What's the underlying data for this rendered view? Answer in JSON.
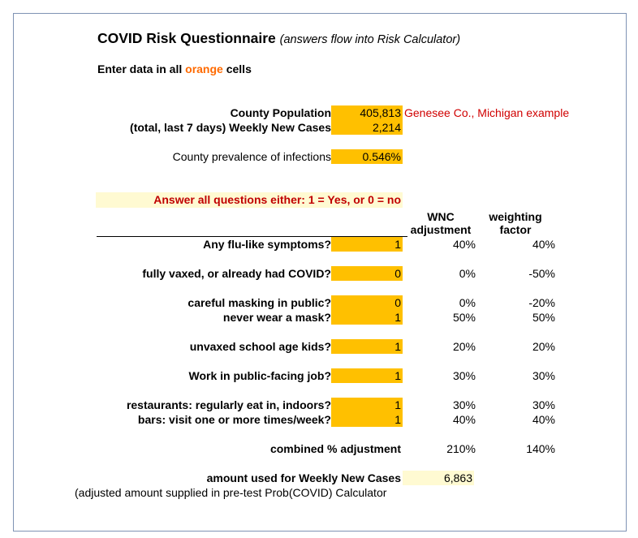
{
  "title": "COVID Risk Questionnaire",
  "subtitle": "(answers flow into Risk Calculator)",
  "instruction": {
    "prefix": "Enter data in all ",
    "highlight": "orange",
    "suffix": " cells"
  },
  "county": {
    "population_label": "County Population",
    "population_value": "405,813",
    "example_note": "Genesee Co., Michigan example",
    "cases_label": "(total, last 7 days) Weekly New Cases",
    "cases_value": "2,214",
    "prevalence_label": "County prevalence of infections",
    "prevalence_value": "0.546%"
  },
  "answer_banner": "Answer all questions either: 1 = Yes, or 0 = no",
  "headers": {
    "wnc": "WNC adjustment",
    "wnc_line1": "WNC",
    "wnc_line2": "adjustment",
    "weight_line1": "weighting",
    "weight_line2": "factor"
  },
  "questions": [
    {
      "label": "Any flu-like symptoms?",
      "answer": "1",
      "wnc": "40%",
      "weight": "40%"
    },
    {
      "label": "fully vaxed, or already had COVID?",
      "answer": "0",
      "wnc": "0%",
      "weight": "-50%"
    },
    {
      "label": "careful masking in public?",
      "answer": "0",
      "wnc": "0%",
      "weight": "-20%"
    },
    {
      "label": "never wear a mask?",
      "answer": "1",
      "wnc": "50%",
      "weight": "50%"
    },
    {
      "label": "unvaxed school age kids?",
      "answer": "1",
      "wnc": "20%",
      "weight": "20%"
    },
    {
      "label": "Work in public-facing job?",
      "answer": "1",
      "wnc": "30%",
      "weight": "30%"
    },
    {
      "label": "restaurants: regularly eat in, indoors?",
      "answer": "1",
      "wnc": "30%",
      "weight": "30%"
    },
    {
      "label": "bars: visit one or more times/week?",
      "answer": "1",
      "wnc": "40%",
      "weight": "40%"
    }
  ],
  "combined": {
    "label": "combined % adjustment",
    "wnc": "210%",
    "weight": "140%"
  },
  "result": {
    "label": "amount used for Weekly New Cases",
    "value": "6,863",
    "note": "(adjusted amount supplied in pre-test Prob(COVID) Calculator"
  },
  "colors": {
    "input_cell": "#ffc000",
    "pale_cell": "#fffad2",
    "accent_text": "#ff6a00",
    "note_red": "#d00000",
    "border": "#7f93b4"
  }
}
